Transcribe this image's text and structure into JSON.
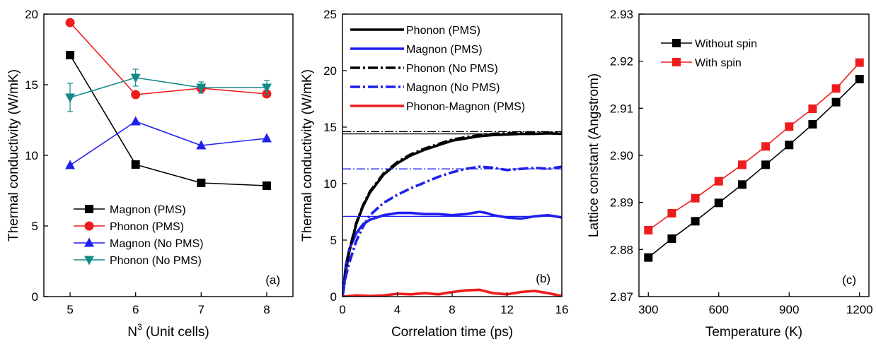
{
  "chart_data": [
    {
      "type": "line",
      "panel_label": "(a)",
      "xlabel": "N",
      "xlabel_sup": "3",
      "xlabel_suffix": " (Unit cells)",
      "ylabel": "Thermal conductivity (W/mK)",
      "xlim": [
        4.6,
        8.4
      ],
      "ylim": [
        0,
        20
      ],
      "x_ticks": [
        5,
        6,
        7,
        8
      ],
      "y_ticks": [
        0,
        5,
        10,
        15,
        20
      ],
      "legend_position": "lower-left",
      "series": [
        {
          "name": "Magnon (PMS)",
          "color": "#000000",
          "marker": "square",
          "x": [
            5,
            6,
            7,
            8
          ],
          "y": [
            17.1,
            9.35,
            8.05,
            7.85
          ]
        },
        {
          "name": "Phonon (PMS)",
          "color": "#ee1c1c",
          "marker": "circle",
          "x": [
            5,
            6,
            7,
            8
          ],
          "y": [
            19.4,
            14.3,
            14.75,
            14.35
          ]
        },
        {
          "name": "Magnon (No PMS)",
          "color": "#1f1fee",
          "marker": "triangle-up",
          "x": [
            5,
            6,
            7,
            8
          ],
          "y": [
            9.3,
            12.4,
            10.7,
            11.2
          ]
        },
        {
          "name": "Phonon (No PMS)",
          "color": "#128a8a",
          "marker": "triangle-down",
          "x": [
            5,
            6,
            7,
            8
          ],
          "y": [
            14.1,
            15.5,
            14.8,
            14.8
          ],
          "err": [
            1.0,
            0.6,
            0.4,
            0.5
          ]
        }
      ]
    },
    {
      "type": "line",
      "panel_label": "(b)",
      "xlabel": "Correlation time (ps)",
      "ylabel": "Thermal conductivity (W/mK)",
      "xlim": [
        0,
        16
      ],
      "ylim": [
        0,
        25
      ],
      "x_ticks": [
        0,
        4,
        8,
        12,
        16
      ],
      "y_ticks": [
        0,
        5,
        10,
        15,
        20,
        25
      ],
      "legend_position": "top",
      "series": [
        {
          "name": "Phonon (PMS)",
          "color": "#000000",
          "dash": "solid",
          "plateau": 14.4,
          "x": [
            0,
            0.25,
            0.5,
            1,
            1.5,
            2,
            3,
            4,
            5,
            6,
            7,
            8,
            9,
            10,
            11,
            12,
            13,
            14,
            15,
            16
          ],
          "y": [
            0,
            2.3,
            4.0,
            6.4,
            8.0,
            9.2,
            10.8,
            11.8,
            12.5,
            13.0,
            13.4,
            13.8,
            14.0,
            14.2,
            14.3,
            14.35,
            14.4,
            14.4,
            14.45,
            14.4
          ]
        },
        {
          "name": "Magnon (PMS)",
          "color": "#1f1fee",
          "dash": "solid",
          "plateau": 7.1,
          "x": [
            0,
            0.25,
            0.5,
            1,
            1.5,
            2,
            2.5,
            3,
            4,
            5,
            6,
            7,
            8,
            9,
            10,
            10.5,
            11,
            12,
            13,
            14,
            15,
            16
          ],
          "y": [
            0,
            2.8,
            4.2,
            5.6,
            6.4,
            6.8,
            7.0,
            7.2,
            7.4,
            7.4,
            7.3,
            7.3,
            7.2,
            7.3,
            7.5,
            7.4,
            7.2,
            7.0,
            6.9,
            7.1,
            7.2,
            7.0
          ]
        },
        {
          "name": "Phonon (No PMS)",
          "color": "#000000",
          "dash": "dashdot",
          "plateau": 14.6,
          "x": [
            0,
            0.25,
            0.5,
            1,
            1.5,
            2,
            3,
            4,
            5,
            6,
            7,
            8,
            9,
            10,
            11,
            12,
            13,
            14,
            15,
            16
          ],
          "y": [
            0,
            2.4,
            4.1,
            6.5,
            8.1,
            9.3,
            10.9,
            11.9,
            12.6,
            13.1,
            13.5,
            13.9,
            14.1,
            14.3,
            14.4,
            14.45,
            14.5,
            14.5,
            14.5,
            14.5
          ]
        },
        {
          "name": "Magnon (No PMS)",
          "color": "#1f1fee",
          "dash": "dashdot",
          "plateau": 11.3,
          "x": [
            0,
            0.25,
            0.5,
            1,
            1.5,
            2,
            3,
            4,
            5,
            6,
            7,
            8,
            9,
            10,
            11,
            12,
            13,
            14,
            15,
            16
          ],
          "y": [
            0,
            1.8,
            3.0,
            4.9,
            6.2,
            7.2,
            8.3,
            9.0,
            9.6,
            10.1,
            10.6,
            11.0,
            11.3,
            11.5,
            11.4,
            11.2,
            11.3,
            11.4,
            11.3,
            11.5
          ]
        },
        {
          "name": "Phonon-Magnon (PMS)",
          "color": "#ee1c1c",
          "dash": "solid",
          "x": [
            0,
            1,
            2,
            3,
            4,
            5,
            6,
            7,
            8,
            9,
            10,
            11,
            12,
            13,
            14,
            15,
            16
          ],
          "y": [
            0,
            0.1,
            0.05,
            0.1,
            0.25,
            0.2,
            0.3,
            0.2,
            0.4,
            0.55,
            0.6,
            0.3,
            0.2,
            0.4,
            0.5,
            0.3,
            0.05
          ]
        }
      ]
    },
    {
      "type": "line",
      "panel_label": "(c)",
      "xlabel": "Temperature (K)",
      "ylabel": "Lattice constant (Angstrom)",
      "xlim": [
        260,
        1240
      ],
      "ylim": [
        2.87,
        2.93
      ],
      "x_ticks": [
        300,
        600,
        900,
        1200
      ],
      "y_ticks": [
        "2.87",
        "2.88",
        "2.89",
        "2.90",
        "2.91",
        "2.92",
        "2.93"
      ],
      "legend_position": "top-left",
      "series": [
        {
          "name": "Without spin",
          "color": "#000000",
          "marker": "square",
          "x": [
            300,
            400,
            500,
            600,
            700,
            800,
            900,
            1000,
            1100,
            1200
          ],
          "y": [
            2.8783,
            2.8823,
            2.886,
            2.8899,
            2.8938,
            2.898,
            2.9022,
            2.9066,
            2.9113,
            2.9162
          ]
        },
        {
          "name": "With spin",
          "color": "#ee1c1c",
          "marker": "square",
          "x": [
            300,
            400,
            500,
            600,
            700,
            800,
            900,
            1000,
            1100,
            1200
          ],
          "y": [
            2.8841,
            2.8877,
            2.8909,
            2.8945,
            2.898,
            2.9019,
            2.9061,
            2.9099,
            2.9142,
            2.9197
          ]
        }
      ]
    }
  ]
}
